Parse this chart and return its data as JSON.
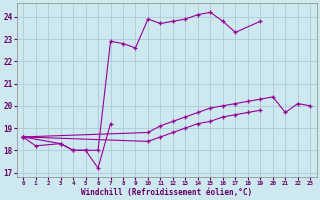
{
  "xlabel": "Windchill (Refroidissement éolien,°C)",
  "background_color": "#cde8ee",
  "grid_color": "#b0d0d8",
  "line_color": "#990099",
  "xlim": [
    -0.5,
    23.5
  ],
  "ylim": [
    16.8,
    24.6
  ],
  "yticks": [
    17,
    18,
    19,
    20,
    21,
    22,
    23,
    24
  ],
  "xticks": [
    0,
    1,
    2,
    3,
    4,
    5,
    6,
    7,
    8,
    9,
    10,
    11,
    12,
    13,
    14,
    15,
    16,
    17,
    18,
    19,
    20,
    21,
    22,
    23
  ],
  "series": [
    {
      "x": [
        0,
        1,
        3,
        4,
        5,
        6,
        7
      ],
      "y": [
        18.6,
        18.2,
        18.3,
        18.0,
        18.0,
        17.2,
        19.2
      ]
    },
    {
      "x": [
        0,
        3,
        4,
        5,
        6,
        7,
        8,
        9,
        10,
        11,
        12,
        13,
        14,
        15,
        16,
        17,
        19
      ],
      "y": [
        18.6,
        18.3,
        18.0,
        18.0,
        18.0,
        22.9,
        22.8,
        22.6,
        23.9,
        23.7,
        23.8,
        23.9,
        24.1,
        24.2,
        23.8,
        23.3,
        23.8
      ]
    },
    {
      "x": [
        0,
        10,
        11,
        12,
        13,
        14,
        15,
        16,
        17,
        18,
        19,
        20,
        21,
        22,
        23
      ],
      "y": [
        18.6,
        18.8,
        19.1,
        19.3,
        19.5,
        19.7,
        19.9,
        20.0,
        20.1,
        20.2,
        20.3,
        20.4,
        19.7,
        20.1,
        20.0
      ]
    },
    {
      "x": [
        0,
        10,
        11,
        12,
        13,
        14,
        15,
        16,
        17,
        18,
        19
      ],
      "y": [
        18.6,
        18.4,
        18.6,
        18.8,
        19.0,
        19.2,
        19.3,
        19.5,
        19.6,
        19.7,
        19.8
      ]
    }
  ]
}
